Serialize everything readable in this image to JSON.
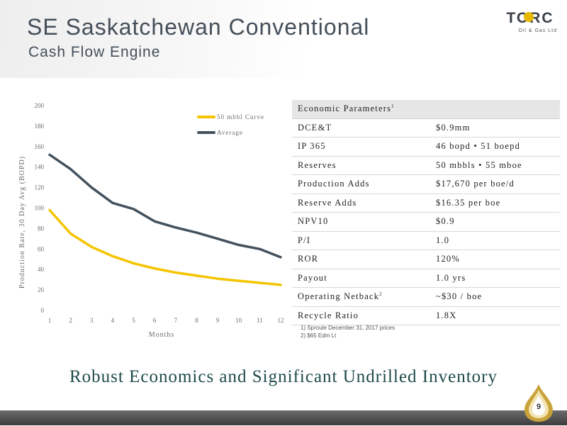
{
  "header": {
    "title": "SE Saskatchewan Conventional",
    "subtitle": "Cash Flow Engine"
  },
  "logo": {
    "word": "TORC",
    "sub": "Oil & Gas Ltd"
  },
  "chart_data": {
    "type": "line",
    "xlabel": "Months",
    "ylabel": "Production Rate, 30 Day Avg (BOPD)",
    "x": [
      1,
      2,
      3,
      4,
      5,
      6,
      7,
      8,
      9,
      10,
      11,
      12
    ],
    "xlim": [
      1,
      12
    ],
    "ylim": [
      0,
      200
    ],
    "y_ticks": [
      0,
      20,
      40,
      60,
      80,
      100,
      120,
      140,
      160,
      180,
      200
    ],
    "legend_position": "top-right",
    "grid": false,
    "series": [
      {
        "name": "50 mbbl Curve",
        "color": "#F5C400",
        "values": [
          98,
          75,
          62,
          53,
          46,
          41,
          37,
          34,
          31,
          29,
          27,
          25
        ]
      },
      {
        "name": "Average",
        "color": "#44525E",
        "values": [
          152,
          138,
          120,
          105,
          99,
          87,
          81,
          76,
          70,
          64,
          60,
          52
        ]
      }
    ]
  },
  "economics": {
    "header": "Economic Parameters",
    "header_sup": "1",
    "rows": [
      {
        "label": "DCE&T",
        "sup": "",
        "value": "$0.9mm"
      },
      {
        "label": "IP 365",
        "sup": "",
        "value": "46 bopd  •  51 boepd"
      },
      {
        "label": "Reserves",
        "sup": "",
        "value": "50 mbbls • 55 mboe"
      },
      {
        "label": "Production Adds",
        "sup": "",
        "value": "$17,670 per boe/d"
      },
      {
        "label": "Reserve Adds",
        "sup": "",
        "value": "$16.35 per boe"
      },
      {
        "label": "NPV10",
        "sup": "",
        "value": "$0.9"
      },
      {
        "label": "P/I",
        "sup": "",
        "value": "1.0"
      },
      {
        "label": "ROR",
        "sup": "",
        "value": "120%"
      },
      {
        "label": "Payout",
        "sup": "",
        "value": "1.0 yrs"
      },
      {
        "label": "Operating Netback",
        "sup": "2",
        "value": "~$30 / boe"
      },
      {
        "label": "Recycle Ratio",
        "sup": "",
        "value": "1.8X"
      }
    ]
  },
  "footnotes": [
    "1)   Sproule December 31, 2017 prices",
    "2)   $65 Edm Lt"
  ],
  "tagline": "Robust Economics and Significant Undrilled Inventory",
  "page_number": "9",
  "colors": {
    "title": "#454F5A",
    "tagline": "#1F4A4A",
    "brand_gold": "#E8B800",
    "table_header_bg": "#E6E6E6"
  }
}
